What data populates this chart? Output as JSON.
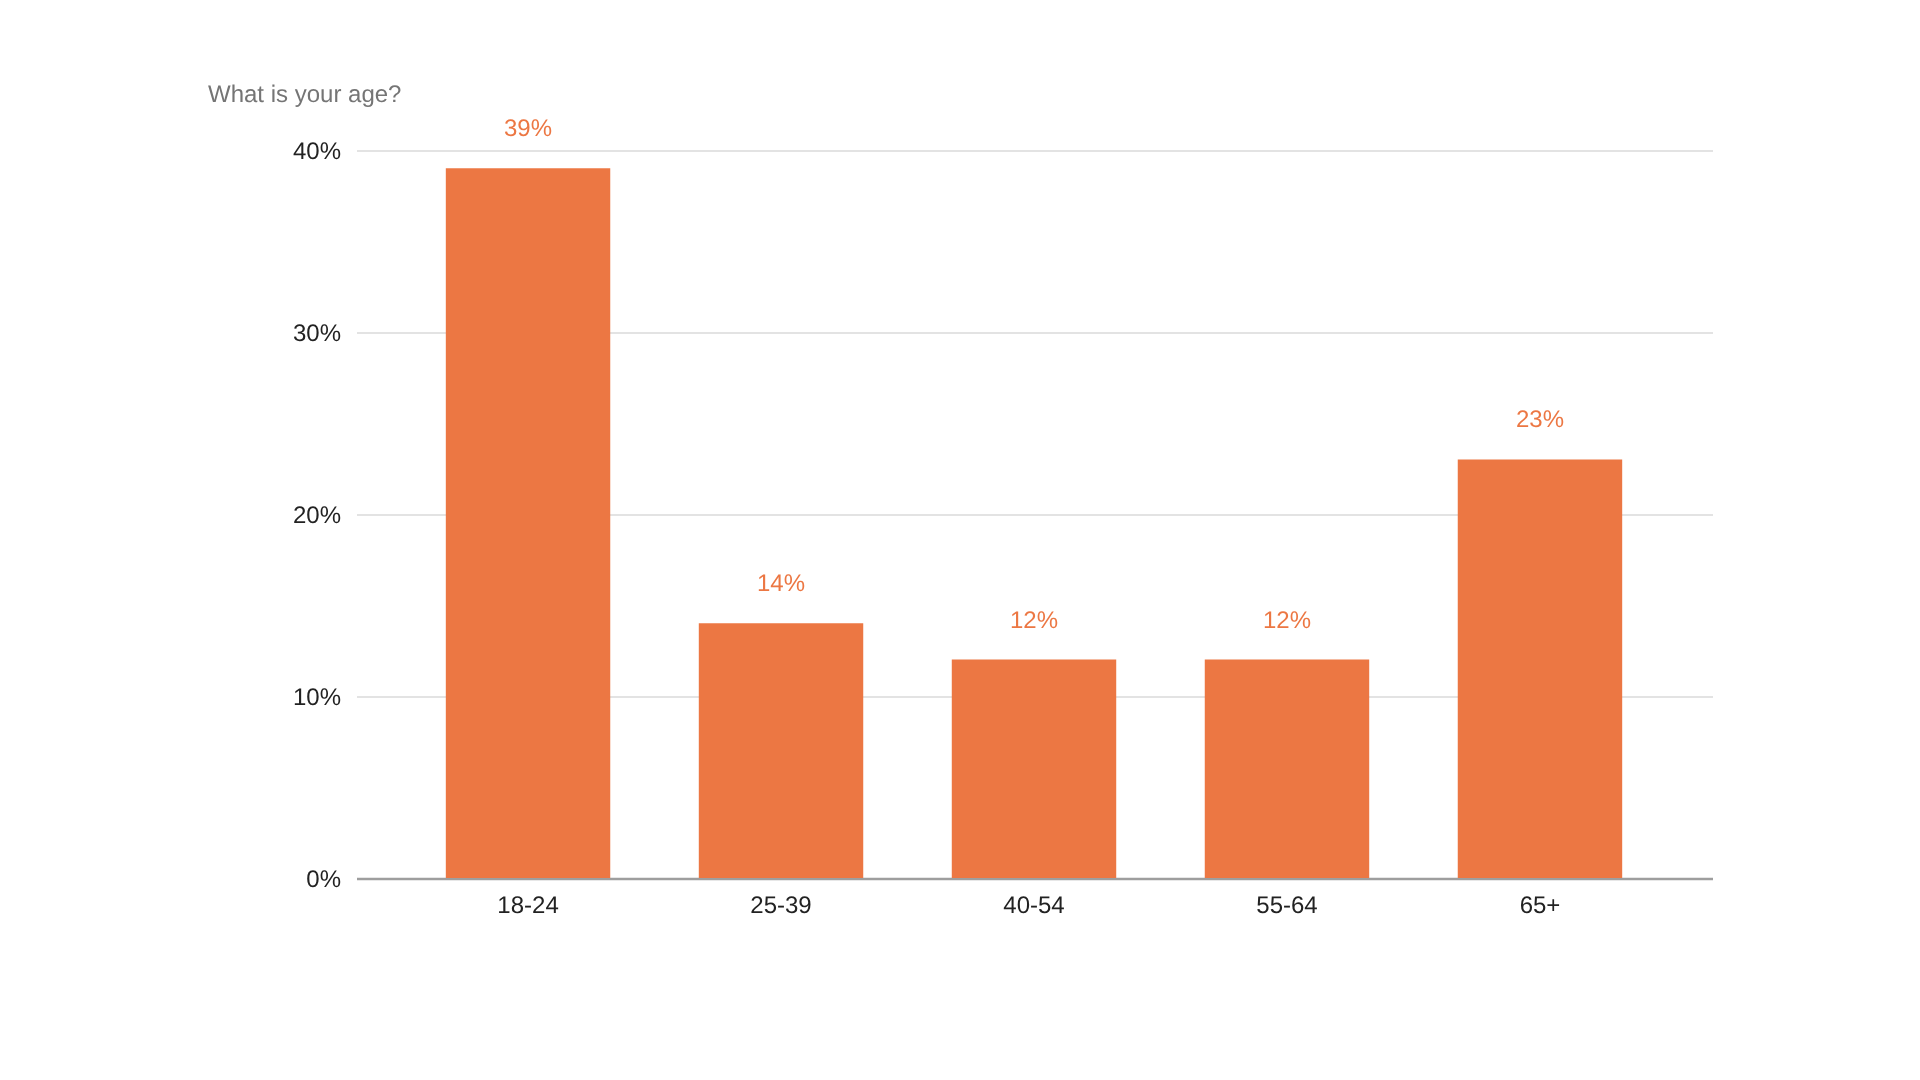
{
  "chart_data": {
    "type": "bar",
    "title": "What is your age?",
    "categories": [
      "18-24",
      "25-39",
      "40-54",
      "55-64",
      "65+"
    ],
    "values": [
      39,
      14,
      12,
      12,
      23
    ],
    "color": "#ec7743",
    "value_labels": [
      "39%",
      "14%",
      "12%",
      "12%",
      "23%"
    ],
    "ylim": [
      0,
      40
    ],
    "yticks": [
      {
        "value": 0,
        "label": "0%"
      },
      {
        "value": 10,
        "label": "10%"
      },
      {
        "value": 20,
        "label": "20%"
      },
      {
        "value": 30,
        "label": "30%"
      },
      {
        "value": 40,
        "label": "40%"
      }
    ],
    "grid": "y"
  }
}
